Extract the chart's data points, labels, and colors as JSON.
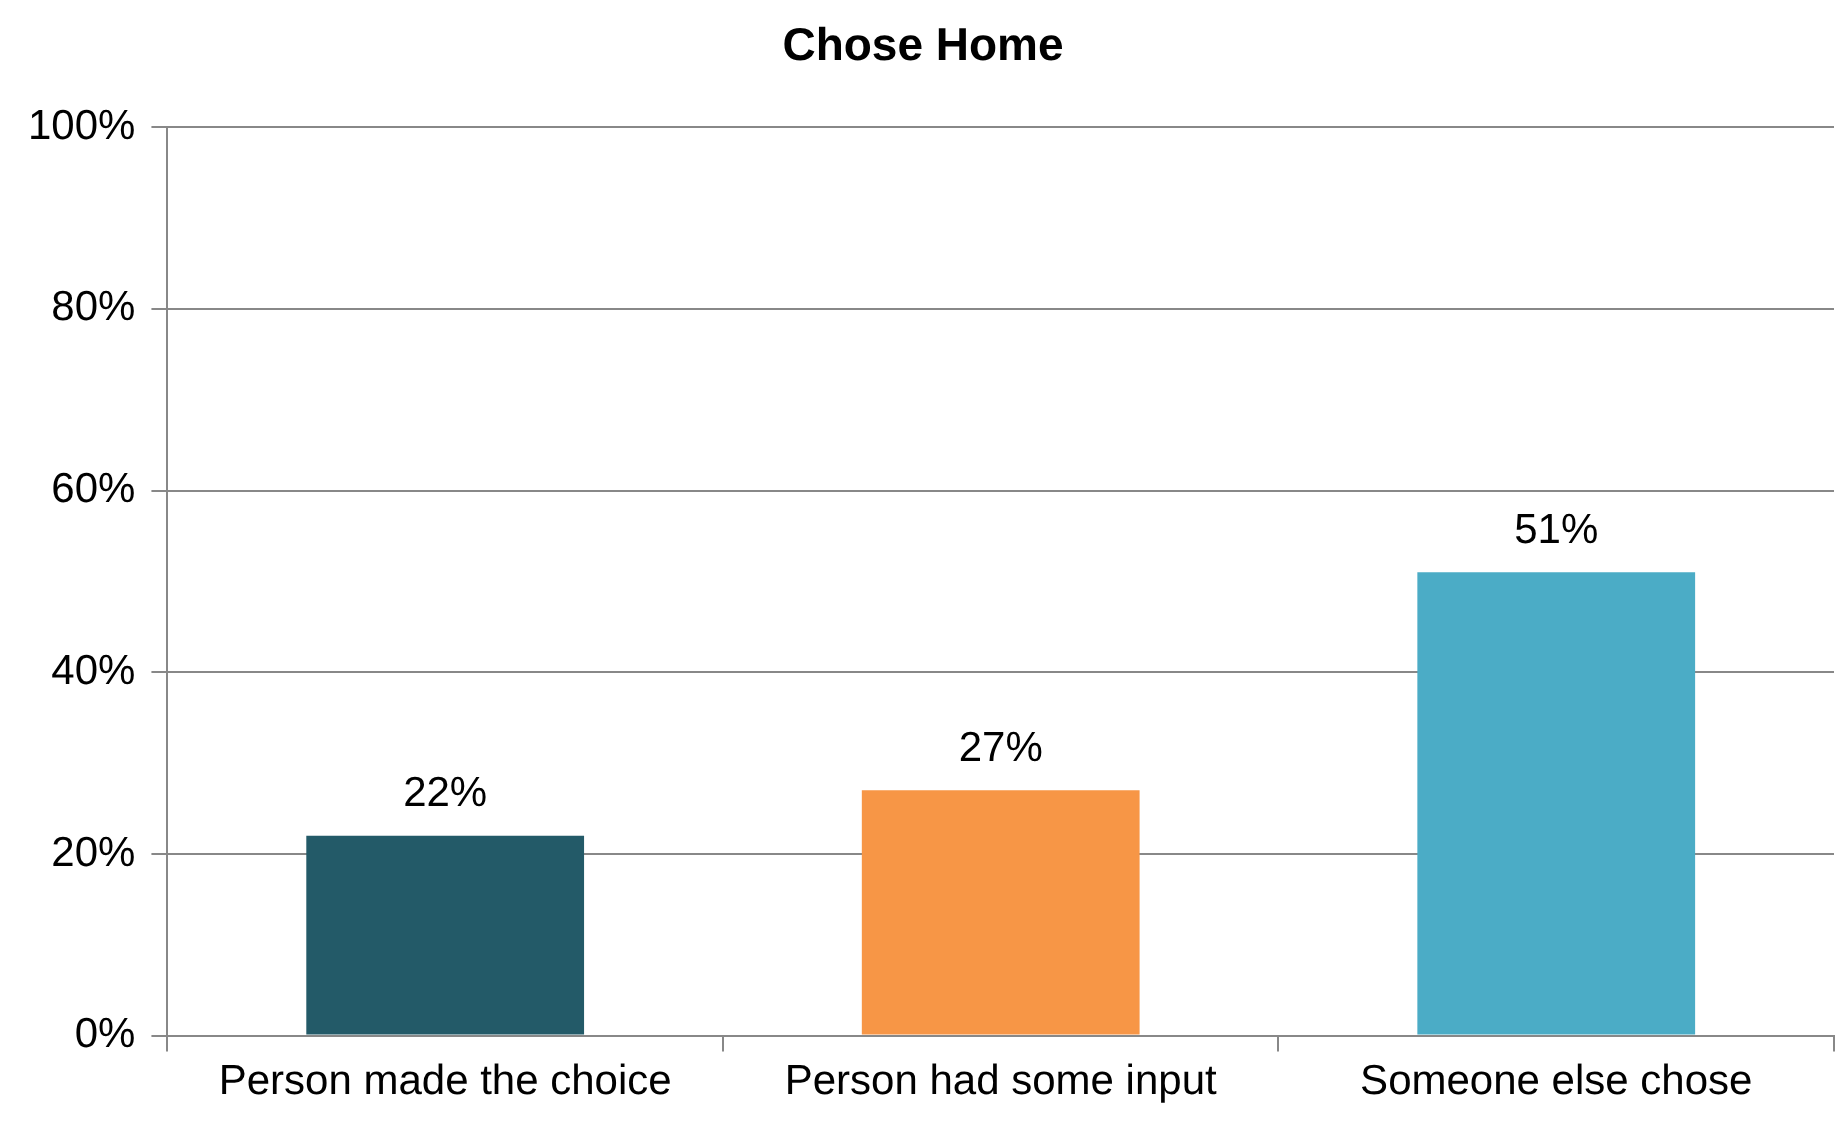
{
  "chart_data": {
    "type": "bar",
    "title": "Chose Home",
    "categories": [
      "Person made the choice",
      "Person had some input",
      "Someone else chose"
    ],
    "values": [
      22,
      27,
      51
    ],
    "colors": [
      "#235a68",
      "#f79646",
      "#4bacc6"
    ],
    "value_labels": [
      "22%",
      "27%",
      "51%"
    ],
    "ylim": [
      0,
      100
    ],
    "yticks": [
      {
        "value": 0,
        "label": "0%"
      },
      {
        "value": 20,
        "label": "20%"
      },
      {
        "value": 40,
        "label": "40%"
      },
      {
        "value": 60,
        "label": "60%"
      },
      {
        "value": 80,
        "label": "80%"
      },
      {
        "value": 100,
        "label": "100%"
      }
    ],
    "grid": "y",
    "legend": false
  }
}
